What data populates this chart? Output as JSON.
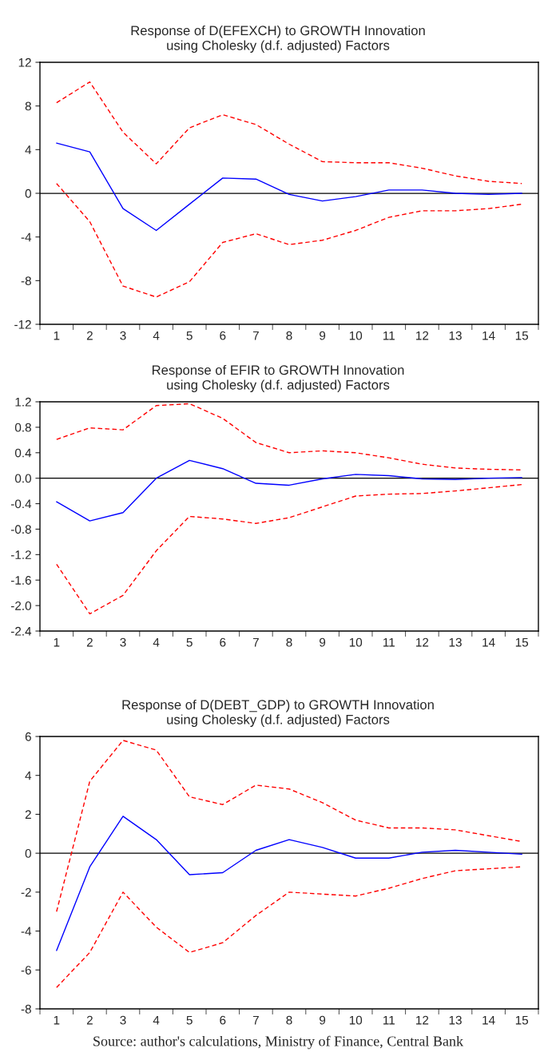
{
  "chart_data": [
    {
      "type": "line",
      "title": "Response of D(EFEXCH) to GROWTH Innovation\nusing Cholesky (d.f. adjusted) Factors",
      "categories": [
        "1",
        "2",
        "3",
        "4",
        "5",
        "6",
        "7",
        "8",
        "9",
        "10",
        "11",
        "12",
        "13",
        "14",
        "15"
      ],
      "series": [
        {
          "color": "#0000ff",
          "line_style": "solid",
          "values": [
            4.6,
            3.8,
            -1.4,
            -3.4,
            -1.0,
            1.4,
            1.3,
            -0.1,
            -0.7,
            -0.3,
            0.3,
            0.3,
            0.0,
            -0.1,
            0.0
          ]
        },
        {
          "color": "#ff0000",
          "line_style": "dashed",
          "values": [
            8.3,
            10.2,
            5.6,
            2.7,
            6.0,
            7.2,
            6.3,
            4.5,
            2.9,
            2.8,
            2.8,
            2.3,
            1.6,
            1.1,
            0.9
          ]
        },
        {
          "color": "#ff0000",
          "line_style": "dashed",
          "values": [
            0.9,
            -2.6,
            -8.5,
            -9.5,
            -8.1,
            -4.5,
            -3.7,
            -4.7,
            -4.3,
            -3.4,
            -2.2,
            -1.6,
            -1.6,
            -1.4,
            -1.0
          ]
        }
      ],
      "ylim": [
        -12,
        12
      ],
      "yticks": [
        -12,
        -8,
        -4,
        0,
        4,
        8,
        12
      ],
      "ref_lines": [
        {
          "axis": "y",
          "value": 0,
          "color": "#000000"
        }
      ],
      "grid": false,
      "legend": false
    },
    {
      "type": "line",
      "title": "Response of EFIR to GROWTH Innovation\nusing Cholesky (d.f. adjusted) Factors",
      "categories": [
        "1",
        "2",
        "3",
        "4",
        "5",
        "6",
        "7",
        "8",
        "9",
        "10",
        "11",
        "12",
        "13",
        "14",
        "15"
      ],
      "series": [
        {
          "color": "#0000ff",
          "line_style": "solid",
          "values": [
            -0.37,
            -0.67,
            -0.54,
            0.0,
            0.28,
            0.15,
            -0.08,
            -0.11,
            -0.01,
            0.06,
            0.04,
            -0.01,
            -0.02,
            0.0,
            0.01
          ]
        },
        {
          "color": "#ff0000",
          "line_style": "dashed",
          "values": [
            0.61,
            0.79,
            0.76,
            1.14,
            1.17,
            0.94,
            0.56,
            0.4,
            0.43,
            0.4,
            0.32,
            0.22,
            0.16,
            0.14,
            0.13
          ]
        },
        {
          "color": "#ff0000",
          "line_style": "dashed",
          "values": [
            -1.35,
            -2.13,
            -1.84,
            -1.14,
            -0.6,
            -0.64,
            -0.71,
            -0.62,
            -0.45,
            -0.28,
            -0.25,
            -0.24,
            -0.2,
            -0.15,
            -0.1
          ]
        }
      ],
      "ylim": [
        -2.4,
        1.2
      ],
      "yticks": [
        -2.4,
        {
          "value": -2,
          "label": "-2.0"
        },
        -1.6,
        -1.2,
        -0.8,
        -0.4,
        {
          "value": 0,
          "label": "0.0"
        },
        0.4,
        0.8,
        1.2
      ],
      "ref_lines": [
        {
          "axis": "y",
          "value": 0,
          "color": "#000000"
        }
      ],
      "grid": false,
      "legend": false
    },
    {
      "type": "line",
      "title": "Response of D(DEBT_GDP) to GROWTH Innovation\nusing Cholesky (d.f. adjusted) Factors",
      "categories": [
        "1",
        "2",
        "3",
        "4",
        "5",
        "6",
        "7",
        "8",
        "9",
        "10",
        "11",
        "12",
        "13",
        "14",
        "15"
      ],
      "series": [
        {
          "color": "#0000ff",
          "line_style": "solid",
          "values": [
            -5.0,
            -0.7,
            1.9,
            0.7,
            -1.1,
            -1.0,
            0.15,
            0.7,
            0.3,
            -0.25,
            -0.25,
            0.05,
            0.15,
            0.05,
            -0.05
          ]
        },
        {
          "color": "#ff0000",
          "line_style": "dashed",
          "values": [
            -3.0,
            3.7,
            5.8,
            5.3,
            2.9,
            2.5,
            3.5,
            3.3,
            2.6,
            1.7,
            1.3,
            1.3,
            1.2,
            0.9,
            0.6
          ]
        },
        {
          "color": "#ff0000",
          "line_style": "dashed",
          "values": [
            -6.9,
            -5.1,
            -2.0,
            -3.8,
            -5.1,
            -4.6,
            -3.2,
            -2.0,
            -2.1,
            -2.2,
            -1.8,
            -1.3,
            -0.9,
            -0.8,
            -0.7
          ]
        }
      ],
      "ylim": [
        -8,
        6
      ],
      "yticks": [
        -8,
        -6,
        -4,
        -2,
        0,
        2,
        4,
        6
      ],
      "ref_lines": [
        {
          "axis": "y",
          "value": 0,
          "color": "#000000"
        }
      ],
      "grid": false,
      "legend": false,
      "annotations": [
        "Source: author's calculations, Ministry of Finance, Central Bank"
      ]
    }
  ]
}
